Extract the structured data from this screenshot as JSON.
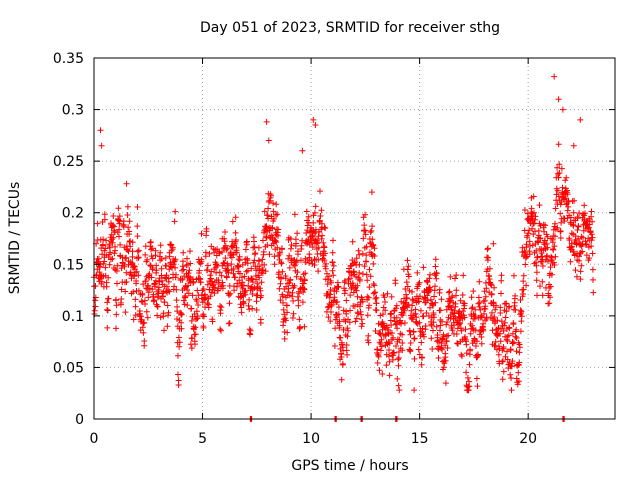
{
  "chart_data": {
    "type": "scatter",
    "title": "Day 051 of 2023, SRMTID for receiver sthg",
    "xlabel": "GPS time / hours",
    "ylabel": "SRMTID / TECUs",
    "xlim": [
      0,
      24
    ],
    "ylim": [
      0,
      0.35
    ],
    "xticks": [
      0,
      5,
      10,
      15,
      20
    ],
    "xtick_labels": [
      "0",
      "5",
      "10",
      "15",
      "20"
    ],
    "yticks": [
      0,
      0.05,
      0.1,
      0.15,
      0.2,
      0.25,
      0.3,
      0.35
    ],
    "ytick_labels": [
      "0",
      "0.05",
      "0.1",
      "0.15",
      "0.2",
      "0.25",
      "0.3",
      "0.35"
    ],
    "grid": true,
    "marker": "plus",
    "color": "#ff0000",
    "series": [
      {
        "name": "SRMTID",
        "trend": {
          "x": [
            0,
            0.3,
            0.6,
            1,
            1.5,
            2,
            2.5,
            3,
            3.5,
            4,
            4.5,
            5,
            5.5,
            6,
            6.5,
            7,
            7.5,
            8,
            8.5,
            9,
            9.5,
            10,
            10.5,
            11,
            11.5,
            12,
            12.5,
            13,
            13.5,
            14,
            14.5,
            15,
            15.5,
            16,
            16.5,
            17,
            17.5,
            18,
            18.5,
            19,
            19.5,
            20,
            20.5,
            21,
            21.5,
            22,
            22.5,
            23
          ],
          "y": [
            0.14,
            0.16,
            0.15,
            0.17,
            0.13,
            0.12,
            0.12,
            0.14,
            0.15,
            0.1,
            0.13,
            0.13,
            0.14,
            0.12,
            0.11,
            0.1,
            0.13,
            0.19,
            0.15,
            0.13,
            0.15,
            0.18,
            0.16,
            0.12,
            0.09,
            0.1,
            0.15,
            0.13,
            0.1,
            0.08,
            0.08,
            0.09,
            0.11,
            0.09,
            0.1,
            0.07,
            0.06,
            0.12,
            0.1,
            0.08,
            0.08,
            0.18,
            0.17,
            0.14,
            0.22,
            0.19,
            0.17,
            0.16
          ]
        },
        "spread": 0.035,
        "points_per_hour": 90,
        "spikes": [
          {
            "x": 0.3,
            "y": 0.28
          },
          {
            "x": 0.35,
            "y": 0.265
          },
          {
            "x": 1.5,
            "y": 0.228
          },
          {
            "x": 7.95,
            "y": 0.288
          },
          {
            "x": 8.05,
            "y": 0.27
          },
          {
            "x": 9.6,
            "y": 0.26
          },
          {
            "x": 10.1,
            "y": 0.29
          },
          {
            "x": 10.2,
            "y": 0.285
          },
          {
            "x": 12.8,
            "y": 0.22
          },
          {
            "x": 18.4,
            "y": 0.17
          },
          {
            "x": 21.2,
            "y": 0.332
          },
          {
            "x": 21.4,
            "y": 0.31
          },
          {
            "x": 21.6,
            "y": 0.3
          },
          {
            "x": 22.4,
            "y": 0.29
          },
          {
            "x": 22.1,
            "y": 0.265
          }
        ],
        "zero_points": [
          7.2,
          11.1,
          12.3,
          13.9,
          21.6
        ],
        "x_start": 0,
        "x_end": 23
      }
    ]
  }
}
